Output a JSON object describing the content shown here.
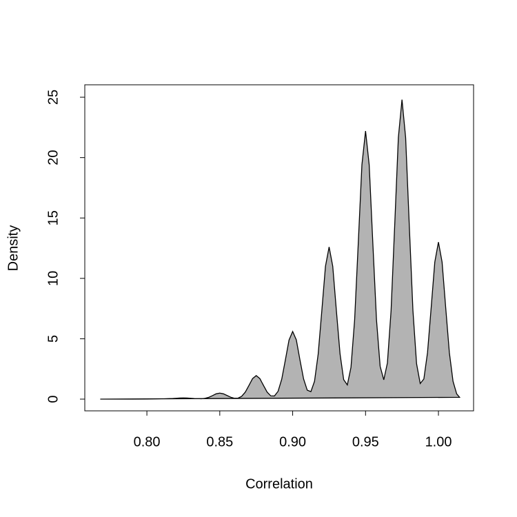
{
  "chart_data": {
    "type": "area",
    "x_label": "Correlation",
    "y_label": "Density",
    "x": [
      0.768,
      0.78,
      0.79,
      0.8,
      0.81,
      0.8175,
      0.8225,
      0.825,
      0.8275,
      0.8325,
      0.8375,
      0.84,
      0.8425,
      0.845,
      0.8475,
      0.85,
      0.8525,
      0.855,
      0.8575,
      0.86,
      0.8625,
      0.865,
      0.8675,
      0.87,
      0.8725,
      0.875,
      0.8775,
      0.88,
      0.8825,
      0.885,
      0.8875,
      0.89,
      0.8925,
      0.895,
      0.8975,
      0.9,
      0.9025,
      0.905,
      0.9075,
      0.91,
      0.9125,
      0.915,
      0.9175,
      0.92,
      0.9225,
      0.925,
      0.9275,
      0.93,
      0.9325,
      0.935,
      0.9375,
      0.94,
      0.9425,
      0.945,
      0.9475,
      0.95,
      0.9525,
      0.955,
      0.9575,
      0.96,
      0.9625,
      0.965,
      0.9675,
      0.97,
      0.9725,
      0.975,
      0.9775,
      0.98,
      0.9825,
      0.985,
      0.9875,
      0.99,
      0.9925,
      0.995,
      0.9975,
      1.0,
      1.0025,
      1.005,
      1.0075,
      1.01,
      1.0125,
      1.0145
    ],
    "values": [
      0.001,
      0.002,
      0.004,
      0.01,
      0.02,
      0.05,
      0.09,
      0.1,
      0.09,
      0.05,
      0.03,
      0.07,
      0.15,
      0.29,
      0.44,
      0.5,
      0.44,
      0.3,
      0.16,
      0.07,
      0.083,
      0.23,
      0.58,
      1.13,
      1.7,
      1.95,
      1.7,
      1.13,
      0.58,
      0.27,
      0.26,
      0.65,
      1.65,
      3.25,
      4.89,
      5.6,
      4.91,
      3.25,
      1.67,
      0.74,
      0.62,
      1.48,
      3.73,
      7.32,
      11.0,
      12.6,
      11.0,
      7.32,
      3.75,
      1.61,
      1.18,
      2.63,
      6.55,
      12.9,
      19.4,
      22.2,
      19.4,
      12.9,
      6.58,
      2.72,
      1.6,
      3.0,
      7.32,
      14.4,
      21.65,
      24.8,
      21.65,
      14.4,
      7.34,
      2.93,
      1.29,
      1.67,
      3.84,
      7.55,
      11.35,
      13.0,
      11.35,
      7.55,
      3.84,
      1.48,
      0.44,
      0.15
    ],
    "color": "#b3b3b3",
    "xlim": [
      0.7574,
      1.0241
    ],
    "ylim": [
      -0.97,
      26.03
    ],
    "xticks": [
      {
        "value": 0.8,
        "label": "0.80"
      },
      0.85,
      {
        "value": 0.9,
        "label": "0.90"
      },
      0.95,
      {
        "value": 1,
        "label": "1.00"
      }
    ],
    "yticks": [
      0,
      5,
      10,
      15,
      20,
      25
    ]
  }
}
